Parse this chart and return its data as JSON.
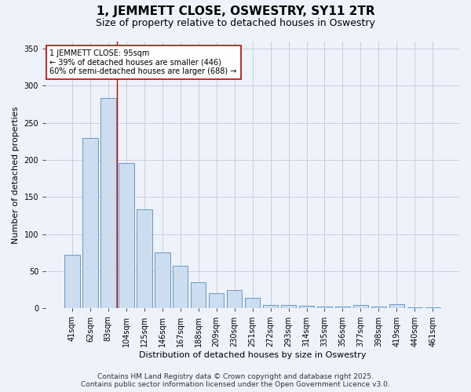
{
  "title": "1, JEMMETT CLOSE, OSWESTRY, SY11 2TR",
  "subtitle": "Size of property relative to detached houses in Oswestry",
  "xlabel": "Distribution of detached houses by size in Oswestry",
  "ylabel": "Number of detached properties",
  "categories": [
    "41sqm",
    "62sqm",
    "83sqm",
    "104sqm",
    "125sqm",
    "146sqm",
    "167sqm",
    "188sqm",
    "209sqm",
    "230sqm",
    "251sqm",
    "272sqm",
    "293sqm",
    "314sqm",
    "335sqm",
    "356sqm",
    "377sqm",
    "398sqm",
    "419sqm",
    "440sqm",
    "461sqm"
  ],
  "values": [
    72,
    230,
    283,
    196,
    133,
    75,
    57,
    35,
    21,
    25,
    14,
    5,
    5,
    4,
    3,
    3,
    5,
    3,
    6,
    2,
    1
  ],
  "bar_color": "#ccddf0",
  "bar_edge_color": "#6699cc",
  "property_line_x": 2.5,
  "property_line_color": "#cc0000",
  "annotation_text": "1 JEMMETT CLOSE: 95sqm\n← 39% of detached houses are smaller (446)\n60% of semi-detached houses are larger (688) →",
  "annotation_box_color": "#ffffff",
  "annotation_box_edge": "#cc0000",
  "ylim": [
    0,
    360
  ],
  "yticks": [
    0,
    50,
    100,
    150,
    200,
    250,
    300,
    350
  ],
  "footer_text": "Contains HM Land Registry data © Crown copyright and database right 2025.\nContains public sector information licensed under the Open Government Licence v3.0.",
  "bg_color": "#eef2fa",
  "plot_bg_color": "#eef2fa",
  "grid_color": "#c8cedc",
  "title_fontsize": 11,
  "subtitle_fontsize": 9,
  "axis_label_fontsize": 8,
  "tick_fontsize": 7,
  "annotation_fontsize": 7,
  "footer_fontsize": 6.5
}
